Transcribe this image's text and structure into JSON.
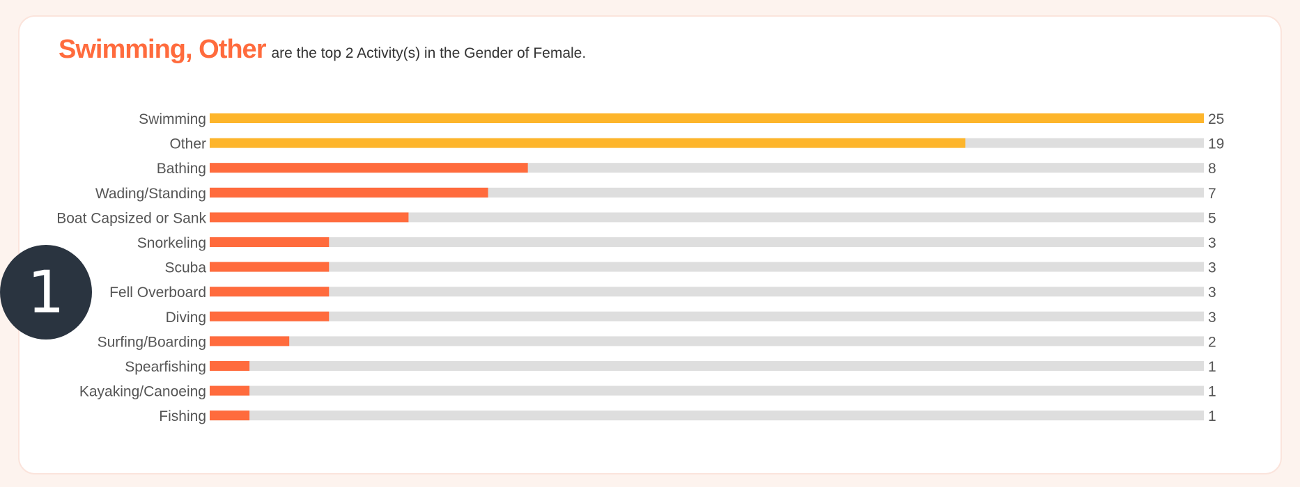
{
  "headline": {
    "highlight": "Swimming, Other",
    "rest": "are the top 2 Activity(s) in the Gender of Female."
  },
  "badge": {
    "number": "1"
  },
  "colors": {
    "top": "#FDB52B",
    "other": "#FF6B3D",
    "track": "#DEDEDE",
    "label": "#555555"
  },
  "chart_data": {
    "type": "bar",
    "orientation": "horizontal",
    "title": "",
    "xlabel": "",
    "ylabel": "",
    "xlim": [
      0,
      25
    ],
    "grid": false,
    "legend": "none",
    "highlighted_top": 2,
    "categories": [
      "Swimming",
      "Other",
      "Bathing",
      "Wading/Standing",
      "Boat Capsized or Sank",
      "Snorkeling",
      "Scuba",
      "Fell Overboard",
      "Diving",
      "Surfing/Boarding",
      "Spearfishing",
      "Kayaking/Canoeing",
      "Fishing"
    ],
    "values": [
      25,
      19,
      8,
      7,
      5,
      3,
      3,
      3,
      3,
      2,
      1,
      1,
      1
    ]
  }
}
